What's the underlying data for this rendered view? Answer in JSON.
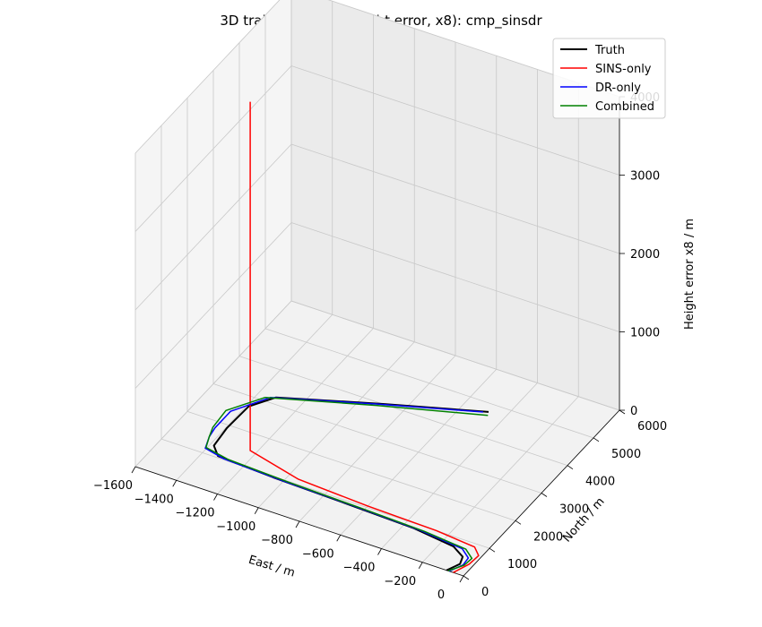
{
  "chart_data": {
    "type": "line",
    "title": "3D trajectory (Z = height error, x8): cmp_sinsdr",
    "xlabel": "East / m",
    "ylabel": "North / m",
    "zlabel": "Height error x8 / m",
    "xlim": [
      -1600,
      0
    ],
    "ylim": [
      0,
      6000
    ],
    "zlim": [
      0,
      4000
    ],
    "x_ticks": [
      -1600,
      -1400,
      -1200,
      -1000,
      -800,
      -600,
      -400,
      -200,
      0
    ],
    "x_tick_labels": [
      "−1600",
      "−1400",
      "−1200",
      "−1000",
      "−800",
      "−600",
      "−400",
      "−200",
      "0"
    ],
    "y_ticks": [
      0,
      1000,
      2000,
      3000,
      4000,
      5000,
      6000
    ],
    "y_tick_labels": [
      "0",
      "1000",
      "2000",
      "3000",
      "4000",
      "5000",
      "6000"
    ],
    "z_ticks": [
      0,
      1000,
      2000,
      3000,
      4000
    ],
    "z_tick_labels": [
      "0",
      "1000",
      "2000",
      "3000",
      "4000"
    ],
    "grid": true,
    "legend_position": "top-right",
    "series": [
      {
        "name": "Truth",
        "color": "#000000",
        "line_width": "thick",
        "x": [
          -82,
          -55,
          -70,
          -140,
          -350,
          -700,
          -1050,
          -1330,
          -1382,
          -1395,
          -1390,
          -1320,
          -900,
          -480
        ],
        "y": [
          0,
          300,
          520,
          720,
          860,
          920,
          970,
          1050,
          1300,
          1900,
          2700,
          3200,
          4000,
          4750
        ],
        "z": [
          0,
          0,
          0,
          0,
          0,
          0,
          0,
          0,
          0,
          0,
          0,
          0,
          0,
          0
        ]
      },
      {
        "name": "SINS-only",
        "color": "#ff0000",
        "x": [
          -50,
          -20,
          -15,
          -60,
          -260,
          -600,
          -950,
          -1230,
          -1230
        ],
        "y": [
          0,
          380,
          700,
          900,
          1000,
          1050,
          1150,
          1500,
          1500
        ],
        "z": [
          0,
          0,
          0,
          0,
          0,
          0,
          0,
          0,
          4450
        ]
      },
      {
        "name": "DR-only",
        "color": "#0000ff",
        "x": [
          -70,
          -40,
          -45,
          -100,
          -320,
          -650,
          -1000,
          -1300,
          -1405,
          -1430,
          -1440,
          -1440,
          -1340,
          -920,
          -500
        ],
        "y": [
          0,
          300,
          540,
          740,
          860,
          920,
          960,
          1030,
          1150,
          1500,
          1800,
          2400,
          3150,
          3950,
          4700
        ],
        "z": [
          0,
          0,
          0,
          0,
          0,
          0,
          0,
          0,
          0,
          0,
          0,
          0,
          0,
          0,
          0
        ]
      },
      {
        "name": "Combined",
        "color": "#008000",
        "x": [
          -75,
          -35,
          -30,
          -85,
          -300,
          -620,
          -980,
          -1280,
          -1405,
          -1430,
          -1450,
          -1460,
          -1360,
          -920,
          -470
        ],
        "y": [
          0,
          300,
          560,
          760,
          870,
          930,
          980,
          1050,
          1180,
          1500,
          1800,
          2380,
          3100,
          3900,
          4650
        ],
        "z": [
          0,
          0,
          0,
          0,
          0,
          0,
          0,
          0,
          0,
          0,
          0,
          0,
          0,
          0,
          0
        ]
      }
    ]
  }
}
